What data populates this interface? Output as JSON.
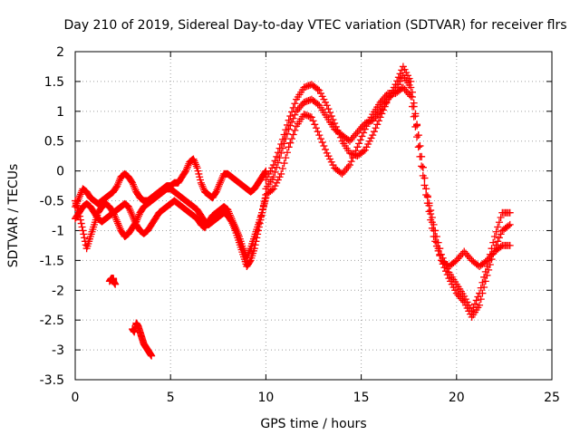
{
  "chart_data": {
    "type": "scatter",
    "title": "Day 210 of 2019, Sidereal Day-to-day VTEC variation (SDTVAR) for receiver flrs",
    "xlabel": "GPS time / hours",
    "ylabel": "SDTVAR / TECUs",
    "xlim": [
      0,
      25
    ],
    "ylim": [
      -3.5,
      2
    ],
    "xticks": [
      0,
      5,
      10,
      15,
      20,
      25
    ],
    "xtick_labels": [
      "0",
      "5",
      "10",
      "15",
      "20",
      "25"
    ],
    "yticks": [
      -3.5,
      -3,
      -2.5,
      -2,
      -1.5,
      -1,
      -0.5,
      0,
      0.5,
      1,
      1.5,
      2
    ],
    "ytick_labels": [
      "-3.5",
      "-3",
      "-2.5",
      "-2",
      "-1.5",
      "-1",
      "-0.5",
      "0",
      "0.5",
      "1",
      "1.5",
      "2"
    ],
    "grid": true,
    "marker": "+",
    "color": "#ff0000",
    "series": [
      {
        "name": "trace-a",
        "x": [
          0.0,
          0.2,
          0.4,
          0.6,
          0.8,
          1.0,
          1.2,
          1.4,
          1.6,
          1.8,
          2.0,
          2.2,
          2.4,
          2.6,
          2.8,
          3.0,
          3.2,
          3.4,
          3.6,
          3.8,
          4.0,
          4.2,
          4.4,
          4.6,
          4.8,
          5.0,
          5.2,
          5.4,
          5.6,
          5.8,
          6.0,
          6.2,
          6.4,
          6.6,
          6.8,
          7.0,
          7.2,
          7.4,
          7.6,
          7.8,
          8.0,
          8.2,
          8.4,
          8.6,
          8.8,
          9.0,
          9.2,
          9.4,
          9.6,
          9.8,
          10.0
        ],
        "y": [
          -0.6,
          -0.45,
          -0.3,
          -0.35,
          -0.45,
          -0.5,
          -0.55,
          -0.5,
          -0.45,
          -0.4,
          -0.35,
          -0.25,
          -0.1,
          -0.05,
          -0.1,
          -0.2,
          -0.35,
          -0.45,
          -0.5,
          -0.5,
          -0.45,
          -0.4,
          -0.35,
          -0.3,
          -0.25,
          -0.25,
          -0.2,
          -0.2,
          -0.1,
          0.0,
          0.15,
          0.2,
          0.05,
          -0.2,
          -0.35,
          -0.4,
          -0.45,
          -0.35,
          -0.2,
          -0.05,
          -0.05,
          -0.1,
          -0.15,
          -0.2,
          -0.25,
          -0.3,
          -0.35,
          -0.3,
          -0.2,
          -0.1,
          0.0
        ]
      },
      {
        "name": "trace-b",
        "x": [
          0.0,
          0.2,
          0.4,
          0.6,
          0.8,
          1.0,
          1.2,
          1.4,
          1.6,
          1.8,
          2.0,
          2.2,
          2.4,
          2.6,
          2.8,
          3.0,
          3.2,
          3.4,
          3.6,
          3.8,
          4.0,
          4.2,
          4.4,
          4.6,
          4.8,
          5.0,
          5.2,
          5.4,
          5.6,
          5.8,
          6.0,
          6.2,
          6.4,
          6.6,
          6.8,
          7.0,
          7.2,
          7.4,
          7.6,
          7.8,
          8.0,
          8.2,
          8.4,
          8.6,
          8.8,
          9.0,
          9.2,
          9.4,
          9.6,
          9.8,
          10.0
        ],
        "y": [
          -0.8,
          -0.7,
          -0.6,
          -0.55,
          -0.6,
          -0.7,
          -0.8,
          -0.85,
          -0.8,
          -0.75,
          -0.7,
          -0.65,
          -0.6,
          -0.55,
          -0.6,
          -0.75,
          -0.9,
          -1.0,
          -1.05,
          -1.0,
          -0.9,
          -0.8,
          -0.7,
          -0.65,
          -0.6,
          -0.55,
          -0.5,
          -0.55,
          -0.6,
          -0.65,
          -0.7,
          -0.75,
          -0.8,
          -0.9,
          -0.95,
          -0.85,
          -0.75,
          -0.7,
          -0.65,
          -0.6,
          -0.65,
          -0.8,
          -0.95,
          -1.1,
          -1.3,
          -1.45,
          -1.3,
          -1.1,
          -0.9,
          -0.7,
          -0.4
        ]
      },
      {
        "name": "trace-c",
        "x": [
          0.0,
          0.2,
          0.4,
          0.6,
          0.8,
          1.0,
          1.2,
          1.4,
          1.6,
          1.8,
          2.0,
          2.2,
          2.4,
          2.6,
          2.8,
          3.0,
          3.2,
          3.4,
          3.6,
          3.8,
          4.0,
          4.2,
          4.4,
          4.6,
          4.8,
          5.0,
          5.2,
          5.4,
          5.6,
          5.8,
          6.0,
          6.2,
          6.4,
          6.6,
          6.8,
          7.0,
          7.2,
          7.4,
          7.6,
          7.8,
          8.0,
          8.2,
          8.4,
          8.6,
          8.8,
          9.0,
          9.2,
          9.4,
          9.6,
          9.8,
          10.0
        ],
        "y": [
          -0.5,
          -0.7,
          -1.0,
          -1.3,
          -1.1,
          -0.9,
          -0.7,
          -0.6,
          -0.55,
          -0.6,
          -0.7,
          -0.85,
          -1.0,
          -1.1,
          -1.05,
          -0.95,
          -0.85,
          -0.7,
          -0.6,
          -0.55,
          -0.5,
          -0.45,
          -0.4,
          -0.35,
          -0.3,
          -0.3,
          -0.35,
          -0.4,
          -0.45,
          -0.5,
          -0.55,
          -0.6,
          -0.65,
          -0.75,
          -0.85,
          -0.9,
          -0.85,
          -0.8,
          -0.75,
          -0.7,
          -0.75,
          -0.85,
          -1.0,
          -1.2,
          -1.4,
          -1.6,
          -1.5,
          -1.3,
          -1.0,
          -0.7,
          -0.45
        ]
      },
      {
        "name": "trace-d",
        "x": [
          10.0,
          10.4,
          10.8,
          11.2,
          11.6,
          12.0,
          12.4,
          12.8,
          13.2,
          13.6,
          14.0,
          14.4,
          14.8,
          15.2,
          15.6,
          16.0,
          16.4,
          16.8,
          17.2,
          17.6,
          18.0,
          18.4,
          18.8,
          19.2,
          19.6,
          20.0,
          20.4,
          20.8,
          21.2,
          21.6,
          22.0,
          22.4,
          22.8
        ],
        "y": [
          -0.3,
          -0.1,
          0.3,
          0.7,
          1.0,
          1.15,
          1.2,
          1.1,
          0.9,
          0.7,
          0.6,
          0.5,
          0.65,
          0.8,
          0.85,
          1.0,
          1.2,
          1.45,
          1.75,
          1.5,
          0.6,
          -0.3,
          -0.9,
          -1.4,
          -1.7,
          -1.9,
          -2.1,
          -2.35,
          -2.05,
          -1.6,
          -1.1,
          -0.7,
          -0.7
        ]
      },
      {
        "name": "trace-e",
        "x": [
          10.0,
          10.4,
          10.8,
          11.2,
          11.6,
          12.0,
          12.4,
          12.8,
          13.2,
          13.6,
          14.0,
          14.4,
          14.8,
          15.2,
          15.6,
          16.0,
          16.4,
          16.8,
          17.2,
          17.6,
          18.0,
          18.4,
          18.8,
          19.2,
          19.6,
          20.0,
          20.4,
          20.8,
          21.2,
          21.6,
          22.0,
          22.4,
          22.8
        ],
        "y": [
          -0.15,
          0.1,
          0.45,
          0.85,
          1.2,
          1.4,
          1.45,
          1.35,
          1.1,
          0.8,
          0.5,
          0.3,
          0.25,
          0.35,
          0.6,
          0.9,
          1.2,
          1.35,
          1.6,
          1.4,
          0.6,
          -0.3,
          -1.0,
          -1.5,
          -1.8,
          -2.05,
          -2.2,
          -2.45,
          -2.25,
          -1.75,
          -1.3,
          -1.0,
          -0.9
        ]
      },
      {
        "name": "trace-f",
        "x": [
          10.0,
          10.4,
          10.8,
          11.2,
          11.6,
          12.0,
          12.4,
          12.8,
          13.2,
          13.6,
          14.0,
          14.4,
          14.8,
          15.2,
          15.6,
          16.0,
          16.4,
          16.8,
          17.2,
          17.6,
          18.0,
          18.4,
          18.8,
          19.2,
          19.6,
          20.0,
          20.4,
          20.8,
          21.2,
          21.6,
          22.0,
          22.4,
          22.8
        ],
        "y": [
          -0.4,
          -0.3,
          -0.05,
          0.4,
          0.75,
          0.95,
          0.9,
          0.6,
          0.3,
          0.05,
          -0.05,
          0.1,
          0.4,
          0.7,
          0.95,
          1.15,
          1.3,
          1.3,
          1.4,
          1.25,
          0.4,
          -0.4,
          -1.1,
          -1.5,
          -1.6,
          -1.5,
          -1.35,
          -1.5,
          -1.6,
          -1.5,
          -1.35,
          -1.25,
          -1.25
        ]
      },
      {
        "name": "outlier-1",
        "x": [
          1.8,
          1.9,
          2.0,
          2.0,
          2.1
        ],
        "y": [
          -1.85,
          -1.8,
          -1.8,
          -1.85,
          -1.9
        ]
      },
      {
        "name": "outlier-2",
        "x": [
          3.0,
          3.1,
          3.2,
          3.3,
          3.4,
          3.5,
          3.6,
          3.7,
          3.8,
          3.9,
          4.0
        ],
        "y": [
          -2.65,
          -2.7,
          -2.55,
          -2.6,
          -2.7,
          -2.8,
          -2.9,
          -2.95,
          -3.0,
          -3.05,
          -3.1
        ]
      }
    ]
  }
}
